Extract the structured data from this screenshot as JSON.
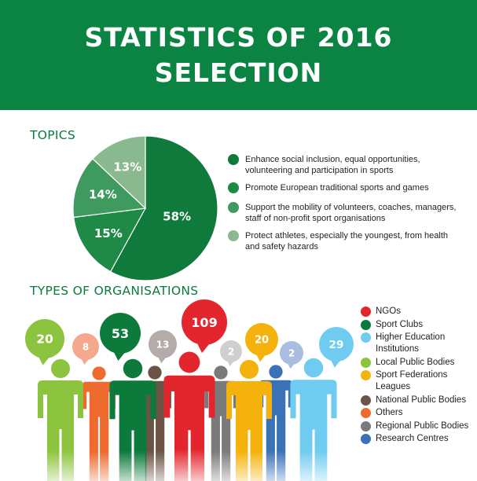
{
  "header": {
    "title": "STATISTICS OF 2016 SELECTION"
  },
  "topics": {
    "title": "TOPICS",
    "items": [
      {
        "label": "Enhance social inclusion, equal opportunities, volunteering and participation in sports",
        "color": "#0f7a3c"
      },
      {
        "label": "Promote European traditional sports and games",
        "color": "#1e8a46"
      },
      {
        "label": "Support the mobility of volunteers, coaches, managers, staff of non-profit sport organisations",
        "color": "#3f9a5f"
      },
      {
        "label": "Protect athletes, especially the youngest, from health and safety hazards",
        "color": "#8ab98f"
      }
    ]
  },
  "organisations": {
    "title": "TYPES OF ORGANISATIONS",
    "items": [
      {
        "label": "NGOs",
        "color": "#e3262d"
      },
      {
        "label": "Sport Clubs",
        "color": "#0c7a3b"
      },
      {
        "label": "Higher Education Institutions",
        "color": "#6fcbf0"
      },
      {
        "label": "Local Public Bodies",
        "color": "#8dc43f"
      },
      {
        "label": "Sport Federations Leagues",
        "color": "#f5b20c"
      },
      {
        "label": "National Public Bodies",
        "color": "#6b5346"
      },
      {
        "label": "Others",
        "color": "#ee6a2f"
      },
      {
        "label": "Regional Public Bodies",
        "color": "#7a7a7a"
      },
      {
        "label": "Research Centres",
        "color": "#3a72b8"
      }
    ]
  },
  "chart_data": [
    {
      "type": "pie",
      "title": "TOPICS",
      "categories": [
        "Enhance social inclusion, equal opportunities, volunteering and participation in sports",
        "Promote European traditional sports and games",
        "Support the mobility of volunteers, coaches, managers, staff of non-profit sport organisations",
        "Protect athletes, especially the youngest, from health and safety hazards"
      ],
      "values": [
        58,
        15,
        14,
        13
      ],
      "labels": [
        "58%",
        "15%",
        "14%",
        "13%"
      ],
      "colors": [
        "#0f7a3c",
        "#1e8a46",
        "#3f9a5f",
        "#8ab98f"
      ],
      "legend": "right"
    },
    {
      "type": "bar",
      "title": "TYPES OF ORGANISATIONS",
      "categories": [
        "Local Public Bodies",
        "Others",
        "Sport Clubs",
        "National Public Bodies",
        "NGOs",
        "Regional Public Bodies",
        "Sport Federations Leagues",
        "Research Centres",
        "Higher Education Institutions"
      ],
      "values": [
        20,
        8,
        53,
        13,
        109,
        2,
        20,
        2,
        29
      ],
      "colors": [
        "#8dc43f",
        "#ee6a2f",
        "#0c7a3b",
        "#6b5346",
        "#e3262d",
        "#7a7a7a",
        "#f5b20c",
        "#3a72b8",
        "#6fcbf0"
      ],
      "bubble_colors": [
        "#8dc43f",
        "#f4a88c",
        "#0c7a3b",
        "#b4aca8",
        "#e3262d",
        "#cfcfcf",
        "#f5b20c",
        "#a8bddf",
        "#6fcbf0"
      ],
      "legend": "right"
    }
  ]
}
